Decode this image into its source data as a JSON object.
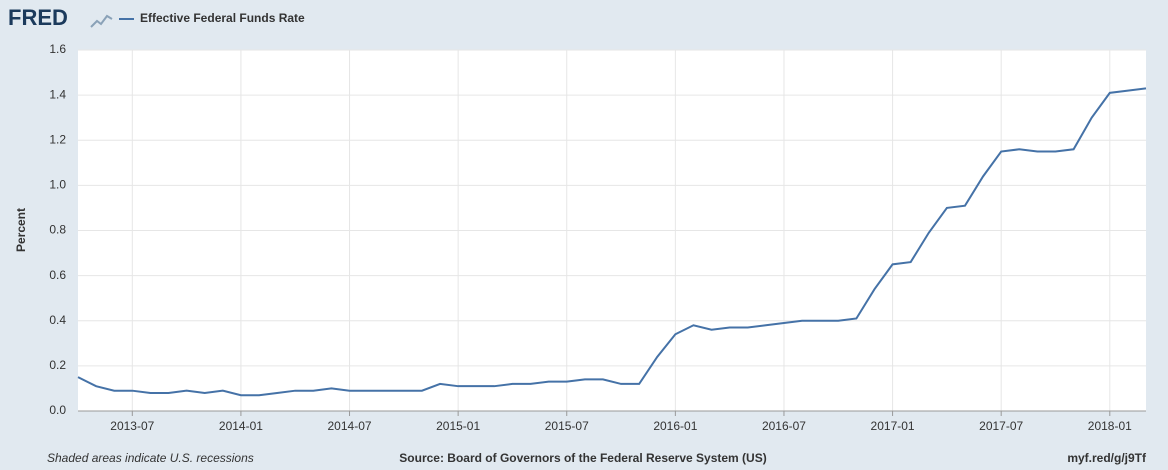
{
  "chart_data": {
    "type": "line",
    "logo": "FRED",
    "ylabel": "Percent",
    "note": "Shaded areas indicate U.S. recessions",
    "source": "Source: Board of Governors of the Federal Reserve System (US)",
    "link": "myf.red/g/j9Tf",
    "x": [
      "2013-04",
      "2013-05",
      "2013-06",
      "2013-07",
      "2013-08",
      "2013-09",
      "2013-10",
      "2013-11",
      "2013-12",
      "2014-01",
      "2014-02",
      "2014-03",
      "2014-04",
      "2014-05",
      "2014-06",
      "2014-07",
      "2014-08",
      "2014-09",
      "2014-10",
      "2014-11",
      "2014-12",
      "2015-01",
      "2015-02",
      "2015-03",
      "2015-04",
      "2015-05",
      "2015-06",
      "2015-07",
      "2015-08",
      "2015-09",
      "2015-10",
      "2015-11",
      "2015-12",
      "2016-01",
      "2016-02",
      "2016-03",
      "2016-04",
      "2016-05",
      "2016-06",
      "2016-07",
      "2016-08",
      "2016-09",
      "2016-10",
      "2016-11",
      "2016-12",
      "2017-01",
      "2017-02",
      "2017-03",
      "2017-04",
      "2017-05",
      "2017-06",
      "2017-07",
      "2017-08",
      "2017-09",
      "2017-10",
      "2017-11",
      "2017-12",
      "2018-01",
      "2018-02",
      "2018-03"
    ],
    "series": [
      {
        "name": "Effective Federal Funds Rate",
        "color": "#4572a7",
        "values": [
          0.15,
          0.11,
          0.09,
          0.09,
          0.08,
          0.08,
          0.09,
          0.08,
          0.09,
          0.07,
          0.07,
          0.08,
          0.09,
          0.09,
          0.1,
          0.09,
          0.09,
          0.09,
          0.09,
          0.09,
          0.12,
          0.11,
          0.11,
          0.11,
          0.12,
          0.12,
          0.13,
          0.13,
          0.14,
          0.14,
          0.12,
          0.12,
          0.24,
          0.34,
          0.38,
          0.36,
          0.37,
          0.37,
          0.38,
          0.39,
          0.4,
          0.4,
          0.4,
          0.41,
          0.54,
          0.65,
          0.66,
          0.79,
          0.9,
          0.91,
          1.04,
          1.15,
          1.16,
          1.15,
          1.15,
          1.16,
          1.3,
          1.41,
          1.42,
          1.43
        ]
      }
    ],
    "xlim": [
      "2013-04",
      "2018-03"
    ],
    "xticks": [
      "2013-07",
      "2014-01",
      "2014-07",
      "2015-01",
      "2015-07",
      "2016-01",
      "2016-07",
      "2017-01",
      "2017-07",
      "2018-01"
    ],
    "ylim": [
      0,
      1.6
    ],
    "yticks": [
      {
        "value": 0,
        "label": "0.0"
      },
      0.2,
      0.4,
      0.6,
      0.8,
      {
        "value": 1,
        "label": "1.0"
      },
      1.2,
      1.4,
      1.6
    ],
    "grid": true
  }
}
